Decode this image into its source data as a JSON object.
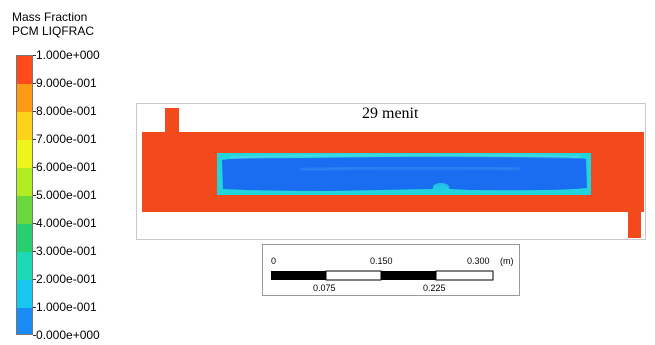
{
  "legend": {
    "title_line1": "Mass Fraction",
    "title_line2": "PCM LIQFRAC",
    "ticks": [
      "1.000e+000",
      "9.000e-001",
      "8.000e-001",
      "7.000e-001",
      "6.000e-001",
      "5.000e-001",
      "4.000e-001",
      "3.000e-001",
      "2.000e-001",
      "1.000e-001",
      "0.000e+000"
    ],
    "colors": [
      "#ff4a1c",
      "#ff9a14",
      "#ffd21a",
      "#eff51a",
      "#b4ec22",
      "#6ad83a",
      "#28cf6e",
      "#1ad9b4",
      "#18c8f0",
      "#1a8af5",
      "#1a3cf0"
    ]
  },
  "contour": {
    "time_label": "29 menit",
    "liquid_color": "#f24a1c",
    "solid_color": "#1a6cf0",
    "edge_color": "#22d4dc"
  },
  "scale_bar": {
    "top_labels": [
      "0",
      "0.150",
      "0.300"
    ],
    "unit": "(m)",
    "bottom_labels": [
      "0.075",
      "0.225"
    ]
  }
}
